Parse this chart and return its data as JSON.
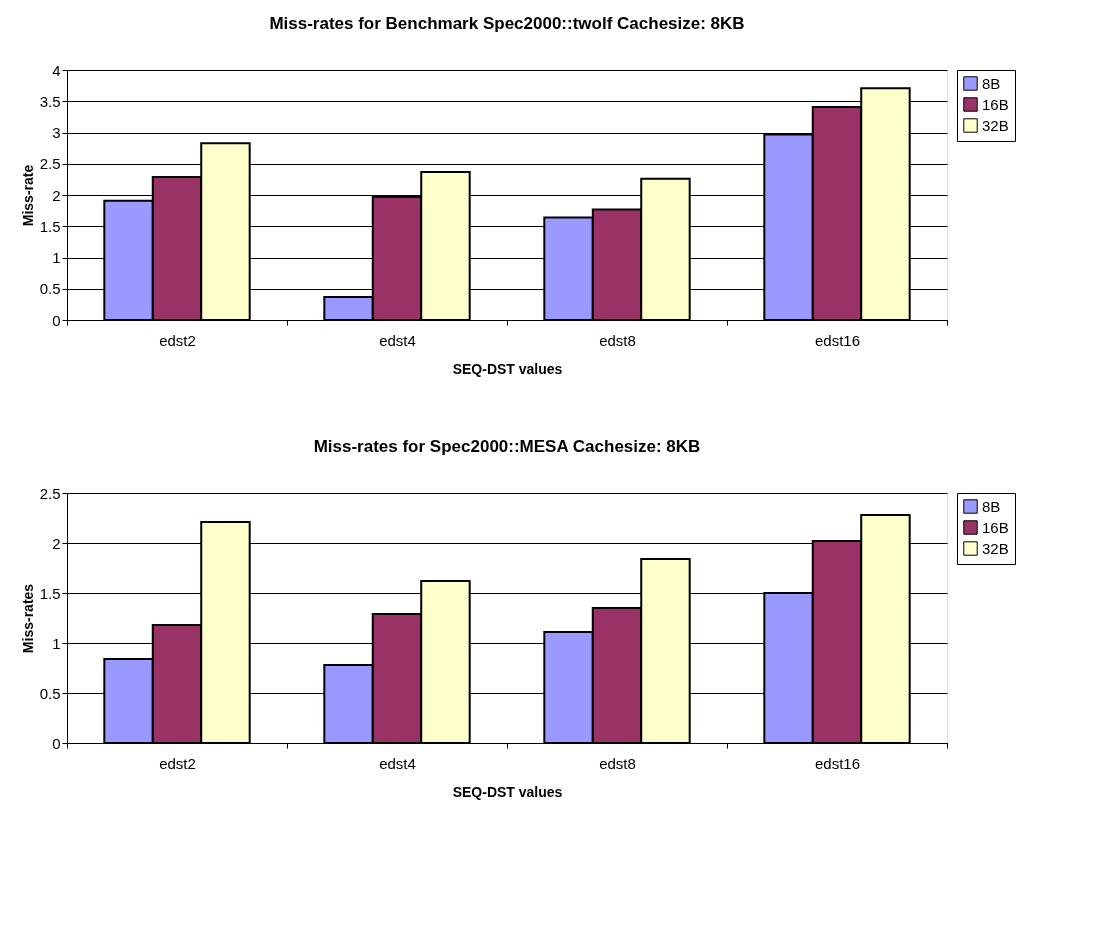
{
  "chart_data": [
    {
      "type": "bar",
      "title": "Miss-rates for Benchmark Spec2000::twolf Cachesize: 8KB",
      "xlabel": "SEQ-DST values",
      "ylabel": "Miss-rate",
      "categories": [
        "edst2",
        "edst4",
        "edst8",
        "edst16"
      ],
      "series": [
        {
          "name": "8B",
          "color": "#9999ff",
          "values": [
            1.91,
            0.37,
            1.64,
            2.97
          ]
        },
        {
          "name": "16B",
          "color": "#993366",
          "values": [
            2.29,
            1.97,
            1.77,
            3.41
          ]
        },
        {
          "name": "32B",
          "color": "#ffffcc",
          "values": [
            2.83,
            2.37,
            2.26,
            3.71
          ]
        }
      ],
      "ylim": [
        0,
        4
      ],
      "yticks": [
        0,
        0.5,
        1,
        1.5,
        2,
        2.5,
        3,
        3.5,
        4
      ],
      "grid": "y",
      "legend": "right"
    },
    {
      "type": "bar",
      "title": "Miss-rates for Spec2000::MESA Cachesize: 8KB",
      "xlabel": "SEQ-DST values",
      "ylabel": "Miss-rates",
      "categories": [
        "edst2",
        "edst4",
        "edst8",
        "edst16"
      ],
      "series": [
        {
          "name": "8B",
          "color": "#9999ff",
          "values": [
            0.84,
            0.78,
            1.11,
            1.5
          ]
        },
        {
          "name": "16B",
          "color": "#993366",
          "values": [
            1.18,
            1.29,
            1.35,
            2.02
          ]
        },
        {
          "name": "32B",
          "color": "#ffffcc",
          "values": [
            2.21,
            1.62,
            1.84,
            2.28
          ]
        }
      ],
      "ylim": [
        0,
        2.5
      ],
      "yticks": [
        0,
        0.5,
        1,
        1.5,
        2,
        2.5
      ],
      "grid": "y",
      "legend": "right"
    }
  ]
}
